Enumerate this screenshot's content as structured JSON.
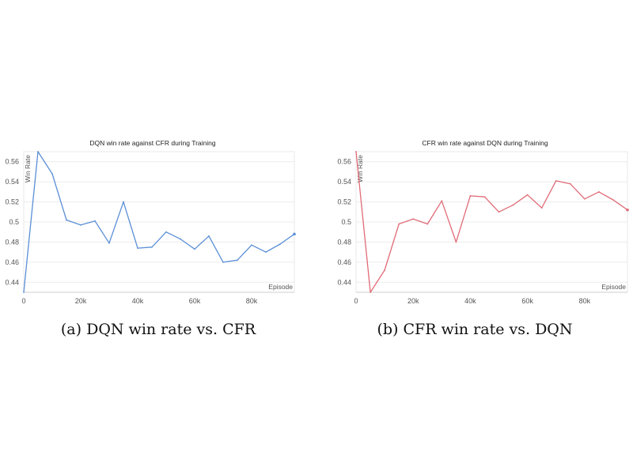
{
  "chart_data": [
    {
      "type": "line",
      "title": "DQN win rate against CFR during Training",
      "xlabel": "Episode",
      "ylabel": "Win Rate",
      "color": "#5b8fd6",
      "caption": "(a) DQN win rate vs. CFR",
      "xlim": [
        0,
        95000
      ],
      "ylim": [
        0.43,
        0.57
      ],
      "x_ticks": [
        0,
        20000,
        40000,
        60000,
        80000
      ],
      "x_tick_labels": [
        "0",
        "20k",
        "40k",
        "60k",
        "80k"
      ],
      "y_ticks": [
        0.44,
        0.46,
        0.48,
        0.5,
        0.52,
        0.54,
        0.56
      ],
      "y_tick_labels": [
        "0.44",
        "0.46",
        "0.48",
        "0.5",
        "0.52",
        "0.54",
        "0.56"
      ],
      "grid": true,
      "series": [
        {
          "x": [
            0,
            5000,
            10000,
            15000,
            20000,
            25000,
            30000,
            35000,
            40000,
            45000,
            50000,
            55000,
            60000,
            65000,
            70000,
            75000,
            80000,
            85000,
            90000,
            95000
          ],
          "y": [
            0.43,
            0.57,
            0.548,
            0.502,
            0.497,
            0.501,
            0.479,
            0.52,
            0.474,
            0.475,
            0.49,
            0.483,
            0.473,
            0.486,
            0.46,
            0.462,
            0.477,
            0.47,
            0.478,
            0.488
          ]
        }
      ]
    },
    {
      "type": "line",
      "title": "CFR win rate against DQN during Training",
      "xlabel": "Episode",
      "ylabel": "Win Rate",
      "color": "#e06c77",
      "caption": "(b) CFR win rate vs. DQN",
      "xlim": [
        0,
        95000
      ],
      "ylim": [
        0.43,
        0.57
      ],
      "x_ticks": [
        0,
        20000,
        40000,
        60000,
        80000
      ],
      "x_tick_labels": [
        "0",
        "20k",
        "40k",
        "60k",
        "80k"
      ],
      "y_ticks": [
        0.44,
        0.46,
        0.48,
        0.5,
        0.52,
        0.54,
        0.56
      ],
      "y_tick_labels": [
        "0.44",
        "0.46",
        "0.48",
        "0.5",
        "0.52",
        "0.54",
        "0.56"
      ],
      "grid": true,
      "series": [
        {
          "x": [
            0,
            5000,
            10000,
            15000,
            20000,
            25000,
            30000,
            35000,
            40000,
            45000,
            50000,
            55000,
            60000,
            65000,
            70000,
            75000,
            80000,
            85000,
            90000,
            95000
          ],
          "y": [
            0.57,
            0.43,
            0.452,
            0.498,
            0.503,
            0.498,
            0.521,
            0.48,
            0.526,
            0.525,
            0.51,
            0.517,
            0.527,
            0.514,
            0.541,
            0.538,
            0.523,
            0.53,
            0.522,
            0.512
          ]
        }
      ]
    }
  ]
}
